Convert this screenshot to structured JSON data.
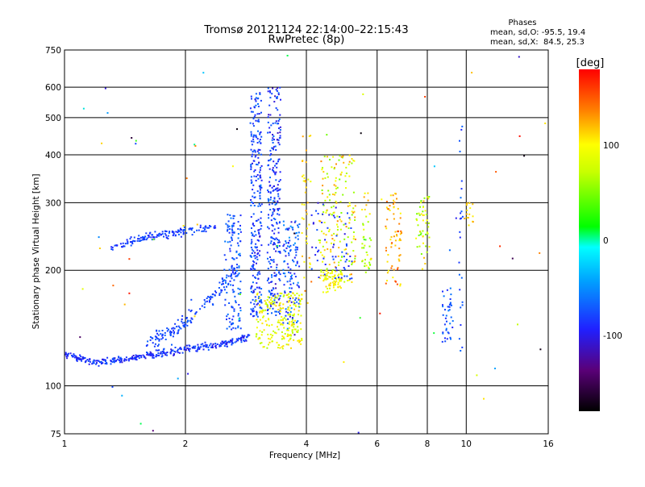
{
  "chart_data": {
    "type": "scatter",
    "title": "Tromsø 20121124 22:14:00–22:15:43",
    "subtitle": "RwPretec (8p)",
    "xlabel": "Frequency [MHz]",
    "ylabel": "Stationary phase Virtual Height [km]",
    "x_scale": "log",
    "y_scale": "log",
    "xlim": [
      1,
      16
    ],
    "ylim": [
      75,
      750
    ],
    "x_ticks": [
      1,
      2,
      4,
      6,
      8,
      10,
      16
    ],
    "y_ticks": [
      75,
      100,
      200,
      300,
      400,
      500,
      600,
      750
    ],
    "grid": true,
    "stats": {
      "heading": "Phases",
      "line_o": "mean, sd,O: -95.5, 19.4",
      "line_x": "mean, sd,X:  84.5, 25.3"
    },
    "colorbar": {
      "label": "[deg]",
      "range": [
        -180,
        180
      ],
      "ticks": [
        100,
        0,
        -100
      ]
    },
    "trace_segments": [
      {
        "desc": "F-region oblique trace",
        "f": [
          1.3,
          1.45,
          1.6,
          1.8,
          2.0,
          2.2,
          2.4
        ],
        "h": [
          228,
          236,
          244,
          248,
          252,
          256,
          262
        ],
        "spread": 0.035,
        "n": 150,
        "phase": [
          -120,
          -90
        ]
      },
      {
        "desc": "Lower E-F trace",
        "f": [
          1.0,
          1.2,
          1.4,
          1.6,
          1.8,
          2.0,
          2.3,
          2.6,
          2.9
        ],
        "h": [
          120,
          115,
          117,
          120,
          122,
          125,
          127,
          130,
          135
        ],
        "spread": 0.03,
        "n": 340,
        "phase": [
          -130,
          -90
        ]
      },
      {
        "desc": "Ascending spread",
        "f": [
          1.6,
          1.9,
          2.2,
          2.5,
          2.7
        ],
        "h": [
          130,
          140,
          160,
          185,
          205
        ],
        "spread": 0.07,
        "n": 150,
        "phase": [
          -120,
          -85
        ]
      }
    ],
    "columns": [
      {
        "f": [
          2.5,
          2.75
        ],
        "h": [
          140,
          280
        ],
        "n": 130,
        "phase": [
          -120,
          -70
        ]
      },
      {
        "f": [
          2.9,
          3.1
        ],
        "h": [
          150,
          580
        ],
        "n": 260,
        "phase": [
          -130,
          -80
        ]
      },
      {
        "f": [
          3.2,
          3.45
        ],
        "h": [
          150,
          600
        ],
        "n": 260,
        "phase": [
          -135,
          -80
        ]
      },
      {
        "f": [
          3.5,
          3.85
        ],
        "h": [
          140,
          270
        ],
        "n": 120,
        "phase": [
          -130,
          -60
        ]
      },
      {
        "f": [
          3.0,
          3.9
        ],
        "h": [
          125,
          175
        ],
        "n": 210,
        "phase": [
          60,
          110
        ]
      },
      {
        "f": [
          3.9,
          4.1
        ],
        "h": [
          160,
          480
        ],
        "n": 40,
        "phase": [
          80,
          140
        ]
      },
      {
        "f": [
          4.3,
          5.3
        ],
        "h": [
          180,
          400
        ],
        "n": 180,
        "phase": [
          40,
          140
        ]
      },
      {
        "f": [
          4.4,
          4.9
        ],
        "h": [
          175,
          200
        ],
        "n": 60,
        "phase": [
          75,
          105
        ]
      },
      {
        "f": [
          4.1,
          5.2
        ],
        "h": [
          190,
          300
        ],
        "n": 60,
        "phase": [
          -130,
          -90
        ]
      },
      {
        "f": [
          5.5,
          5.8
        ],
        "h": [
          200,
          320
        ],
        "n": 40,
        "phase": [
          20,
          130
        ]
      },
      {
        "f": [
          6.3,
          6.9
        ],
        "h": [
          180,
          330
        ],
        "n": 70,
        "phase": [
          90,
          160
        ]
      },
      {
        "f": [
          7.5,
          8.1
        ],
        "h": [
          200,
          320
        ],
        "n": 50,
        "phase": [
          30,
          130
        ]
      },
      {
        "f": [
          8.7,
          9.3
        ],
        "h": [
          130,
          180
        ],
        "n": 40,
        "phase": [
          -120,
          -70
        ]
      },
      {
        "f": [
          9.6,
          9.8
        ],
        "h": [
          120,
          500
        ],
        "n": 25,
        "phase": [
          -120,
          -80
        ]
      },
      {
        "f": [
          9.9,
          10.4
        ],
        "h": [
          260,
          300
        ],
        "n": 15,
        "phase": [
          90,
          130
        ]
      }
    ]
  }
}
